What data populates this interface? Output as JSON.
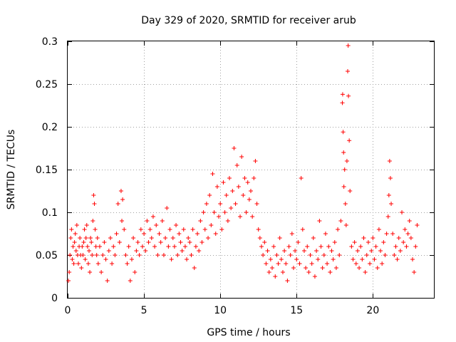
{
  "chart_data": {
    "type": "scatter",
    "title": "Day 329 of 2020, SRMTID for receiver arub",
    "xlabel": "GPS time / hours",
    "ylabel": "SRMTID / TECUs",
    "xlim": [
      0,
      24
    ],
    "ylim": [
      0,
      0.3
    ],
    "xticks": [
      0,
      5,
      10,
      15,
      20
    ],
    "xtick_labels": [
      "0",
      "5",
      "10",
      "15",
      "20"
    ],
    "yticks": [
      0,
      0.05,
      0.1,
      0.15,
      0.2,
      0.25,
      0.3
    ],
    "ytick_labels": [
      "0",
      "0.05",
      "0.1",
      "0.15",
      "0.2",
      "0.25",
      "0.3"
    ],
    "grid": true,
    "marker": "plus",
    "series": [
      {
        "name": "SRMTID",
        "color": "#ff0000",
        "points": [
          [
            0.05,
            0.02
          ],
          [
            0.1,
            0.03
          ],
          [
            0.15,
            0.05
          ],
          [
            0.2,
            0.07
          ],
          [
            0.25,
            0.08
          ],
          [
            0.3,
            0.045
          ],
          [
            0.35,
            0.06
          ],
          [
            0.4,
            0.04
          ],
          [
            0.45,
            0.065
          ],
          [
            0.5,
            0.075
          ],
          [
            0.55,
            0.055
          ],
          [
            0.6,
            0.085
          ],
          [
            0.65,
            0.05
          ],
          [
            0.7,
            0.04
          ],
          [
            0.75,
            0.06
          ],
          [
            0.8,
            0.07
          ],
          [
            0.85,
            0.05
          ],
          [
            0.9,
            0.035
          ],
          [
            0.95,
            0.06
          ],
          [
            1.0,
            0.05
          ],
          [
            1.05,
            0.065
          ],
          [
            1.1,
            0.08
          ],
          [
            1.15,
            0.045
          ],
          [
            1.2,
            0.07
          ],
          [
            1.25,
            0.085
          ],
          [
            1.3,
            0.06
          ],
          [
            1.35,
            0.04
          ],
          [
            1.4,
            0.055
          ],
          [
            1.45,
            0.03
          ],
          [
            1.5,
            0.07
          ],
          [
            1.55,
            0.065
          ],
          [
            1.6,
            0.05
          ],
          [
            1.65,
            0.09
          ],
          [
            1.7,
            0.12
          ],
          [
            1.75,
            0.11
          ],
          [
            1.8,
            0.08
          ],
          [
            1.85,
            0.06
          ],
          [
            1.9,
            0.05
          ],
          [
            1.95,
            0.07
          ],
          [
            2.0,
            0.04
          ],
          [
            2.1,
            0.06
          ],
          [
            2.2,
            0.03
          ],
          [
            2.3,
            0.05
          ],
          [
            2.4,
            0.065
          ],
          [
            2.5,
            0.045
          ],
          [
            2.6,
            0.02
          ],
          [
            2.7,
            0.055
          ],
          [
            2.8,
            0.07
          ],
          [
            2.9,
            0.04
          ],
          [
            3.0,
            0.06
          ],
          [
            3.1,
            0.05
          ],
          [
            3.2,
            0.075
          ],
          [
            3.3,
            0.11
          ],
          [
            3.4,
            0.065
          ],
          [
            3.5,
            0.125
          ],
          [
            3.55,
            0.09
          ],
          [
            3.6,
            0.115
          ],
          [
            3.7,
            0.08
          ],
          [
            3.8,
            0.05
          ],
          [
            3.9,
            0.04
          ],
          [
            4.0,
            0.06
          ],
          [
            4.1,
            0.02
          ],
          [
            4.2,
            0.045
          ],
          [
            4.3,
            0.07
          ],
          [
            4.4,
            0.03
          ],
          [
            4.5,
            0.055
          ],
          [
            4.6,
            0.065
          ],
          [
            4.7,
            0.05
          ],
          [
            4.8,
            0.08
          ],
          [
            4.9,
            0.06
          ],
          [
            5.0,
            0.075
          ],
          [
            5.1,
            0.055
          ],
          [
            5.2,
            0.09
          ],
          [
            5.3,
            0.065
          ],
          [
            5.4,
            0.08
          ],
          [
            5.5,
            0.07
          ],
          [
            5.6,
            0.095
          ],
          [
            5.7,
            0.06
          ],
          [
            5.8,
            0.085
          ],
          [
            5.9,
            0.05
          ],
          [
            6.0,
            0.075
          ],
          [
            6.1,
            0.065
          ],
          [
            6.2,
            0.09
          ],
          [
            6.3,
            0.05
          ],
          [
            6.4,
            0.07
          ],
          [
            6.5,
            0.105
          ],
          [
            6.6,
            0.06
          ],
          [
            6.7,
            0.08
          ],
          [
            6.8,
            0.045
          ],
          [
            6.9,
            0.07
          ],
          [
            7.0,
            0.06
          ],
          [
            7.1,
            0.085
          ],
          [
            7.2,
            0.05
          ],
          [
            7.3,
            0.075
          ],
          [
            7.4,
            0.065
          ],
          [
            7.5,
            0.055
          ],
          [
            7.6,
            0.08
          ],
          [
            7.7,
            0.06
          ],
          [
            7.8,
            0.045
          ],
          [
            7.9,
            0.07
          ],
          [
            8.0,
            0.065
          ],
          [
            8.1,
            0.05
          ],
          [
            8.2,
            0.08
          ],
          [
            8.3,
            0.035
          ],
          [
            8.4,
            0.06
          ],
          [
            8.5,
            0.075
          ],
          [
            8.6,
            0.055
          ],
          [
            8.7,
            0.09
          ],
          [
            8.8,
            0.065
          ],
          [
            8.9,
            0.1
          ],
          [
            9.0,
            0.08
          ],
          [
            9.1,
            0.11
          ],
          [
            9.2,
            0.07
          ],
          [
            9.3,
            0.12
          ],
          [
            9.4,
            0.085
          ],
          [
            9.5,
            0.145
          ],
          [
            9.6,
            0.1
          ],
          [
            9.7,
            0.075
          ],
          [
            9.8,
            0.13
          ],
          [
            9.9,
            0.095
          ],
          [
            10.0,
            0.11
          ],
          [
            10.1,
            0.08
          ],
          [
            10.2,
            0.135
          ],
          [
            10.3,
            0.1
          ],
          [
            10.4,
            0.12
          ],
          [
            10.5,
            0.09
          ],
          [
            10.6,
            0.14
          ],
          [
            10.7,
            0.105
          ],
          [
            10.8,
            0.125
          ],
          [
            10.9,
            0.175
          ],
          [
            11.0,
            0.11
          ],
          [
            11.1,
            0.155
          ],
          [
            11.2,
            0.13
          ],
          [
            11.3,
            0.095
          ],
          [
            11.4,
            0.165
          ],
          [
            11.5,
            0.12
          ],
          [
            11.6,
            0.14
          ],
          [
            11.7,
            0.1
          ],
          [
            11.8,
            0.135
          ],
          [
            11.9,
            0.115
          ],
          [
            12.0,
            0.125
          ],
          [
            12.1,
            0.095
          ],
          [
            12.2,
            0.14
          ],
          [
            12.3,
            0.16
          ],
          [
            12.4,
            0.11
          ],
          [
            12.5,
            0.08
          ],
          [
            12.6,
            0.07
          ],
          [
            12.7,
            0.06
          ],
          [
            12.8,
            0.05
          ],
          [
            12.9,
            0.065
          ],
          [
            13.0,
            0.04
          ],
          [
            13.1,
            0.055
          ],
          [
            13.2,
            0.03
          ],
          [
            13.3,
            0.045
          ],
          [
            13.4,
            0.035
          ],
          [
            13.5,
            0.06
          ],
          [
            13.6,
            0.025
          ],
          [
            13.7,
            0.05
          ],
          [
            13.8,
            0.04
          ],
          [
            13.9,
            0.07
          ],
          [
            14.0,
            0.045
          ],
          [
            14.1,
            0.03
          ],
          [
            14.2,
            0.055
          ],
          [
            14.3,
            0.04
          ],
          [
            14.4,
            0.02
          ],
          [
            14.5,
            0.06
          ],
          [
            14.6,
            0.05
          ],
          [
            14.7,
            0.075
          ],
          [
            14.8,
            0.035
          ],
          [
            14.9,
            0.055
          ],
          [
            15.0,
            0.045
          ],
          [
            15.1,
            0.065
          ],
          [
            15.2,
            0.04
          ],
          [
            15.3,
            0.14
          ],
          [
            15.4,
            0.08
          ],
          [
            15.5,
            0.055
          ],
          [
            15.6,
            0.035
          ],
          [
            15.7,
            0.06
          ],
          [
            15.8,
            0.03
          ],
          [
            15.9,
            0.05
          ],
          [
            16.0,
            0.04
          ],
          [
            16.1,
            0.07
          ],
          [
            16.2,
            0.025
          ],
          [
            16.3,
            0.055
          ],
          [
            16.4,
            0.045
          ],
          [
            16.5,
            0.09
          ],
          [
            16.6,
            0.06
          ],
          [
            16.7,
            0.035
          ],
          [
            16.8,
            0.05
          ],
          [
            16.9,
            0.075
          ],
          [
            17.0,
            0.04
          ],
          [
            17.1,
            0.06
          ],
          [
            17.2,
            0.03
          ],
          [
            17.3,
            0.055
          ],
          [
            17.4,
            0.045
          ],
          [
            17.5,
            0.065
          ],
          [
            17.6,
            0.035
          ],
          [
            17.7,
            0.08
          ],
          [
            17.8,
            0.05
          ],
          [
            17.9,
            0.09
          ],
          [
            18.0,
            0.228
          ],
          [
            18.02,
            0.238
          ],
          [
            18.05,
            0.194
          ],
          [
            18.08,
            0.17
          ],
          [
            18.1,
            0.13
          ],
          [
            18.15,
            0.15
          ],
          [
            18.2,
            0.11
          ],
          [
            18.25,
            0.085
          ],
          [
            18.3,
            0.16
          ],
          [
            18.35,
            0.265
          ],
          [
            18.38,
            0.295
          ],
          [
            18.4,
            0.236
          ],
          [
            18.45,
            0.184
          ],
          [
            18.5,
            0.125
          ],
          [
            18.6,
            0.06
          ],
          [
            18.7,
            0.045
          ],
          [
            18.8,
            0.065
          ],
          [
            18.9,
            0.04
          ],
          [
            19.0,
            0.055
          ],
          [
            19.1,
            0.035
          ],
          [
            19.2,
            0.06
          ],
          [
            19.3,
            0.045
          ],
          [
            19.4,
            0.07
          ],
          [
            19.5,
            0.03
          ],
          [
            19.6,
            0.05
          ],
          [
            19.7,
            0.065
          ],
          [
            19.8,
            0.04
          ],
          [
            19.9,
            0.055
          ],
          [
            20.0,
            0.07
          ],
          [
            20.1,
            0.045
          ],
          [
            20.2,
            0.06
          ],
          [
            20.3,
            0.035
          ],
          [
            20.4,
            0.08
          ],
          [
            20.5,
            0.055
          ],
          [
            20.6,
            0.04
          ],
          [
            20.7,
            0.065
          ],
          [
            20.8,
            0.05
          ],
          [
            20.9,
            0.075
          ],
          [
            21.0,
            0.095
          ],
          [
            21.05,
            0.12
          ],
          [
            21.1,
            0.16
          ],
          [
            21.15,
            0.14
          ],
          [
            21.2,
            0.11
          ],
          [
            21.3,
            0.075
          ],
          [
            21.4,
            0.05
          ],
          [
            21.5,
            0.06
          ],
          [
            21.6,
            0.045
          ],
          [
            21.7,
            0.07
          ],
          [
            21.8,
            0.055
          ],
          [
            21.9,
            0.1
          ],
          [
            22.0,
            0.065
          ],
          [
            22.1,
            0.08
          ],
          [
            22.2,
            0.06
          ],
          [
            22.3,
            0.075
          ],
          [
            22.4,
            0.09
          ],
          [
            22.5,
            0.07
          ],
          [
            22.6,
            0.045
          ],
          [
            22.7,
            0.03
          ],
          [
            22.8,
            0.06
          ],
          [
            22.9,
            0.085
          ]
        ]
      }
    ]
  }
}
